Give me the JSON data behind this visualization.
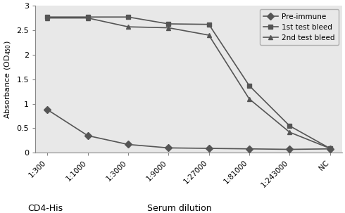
{
  "x_labels": [
    "1:300",
    "1:1000",
    "1:3000",
    "1:9000",
    "1:27000",
    "1:81000",
    "1:243000",
    "NC"
  ],
  "x_positions": [
    0,
    1,
    2,
    3,
    4,
    5,
    6,
    7
  ],
  "pre_immune": [
    0.88,
    0.35,
    0.17,
    0.1,
    0.09,
    0.08,
    0.07,
    0.08
  ],
  "first_test": [
    2.77,
    2.77,
    2.77,
    2.63,
    2.62,
    1.37,
    0.55,
    0.09
  ],
  "second_test": [
    2.75,
    2.75,
    2.57,
    2.55,
    2.4,
    1.1,
    0.42,
    0.09
  ],
  "line_color": "#555555",
  "ylabel": "Absorbance (OD$_{450}$)",
  "xlabel_center": "Serum dilution",
  "xlabel_left": "CD4-His",
  "ylim": [
    0,
    3.0
  ],
  "yticks": [
    0,
    0.5,
    1.0,
    1.5,
    2.0,
    2.5,
    3
  ],
  "ytick_labels": [
    "0",
    "0.5",
    "1",
    "1.5",
    "2",
    "2.5",
    "3"
  ],
  "legend_labels": [
    "Pre-immune",
    "1st test bleed",
    "2nd test bleed"
  ],
  "pre_immune_marker": "D",
  "first_test_marker": "s",
  "second_test_marker": "^",
  "background_color": "#e8e8e8"
}
